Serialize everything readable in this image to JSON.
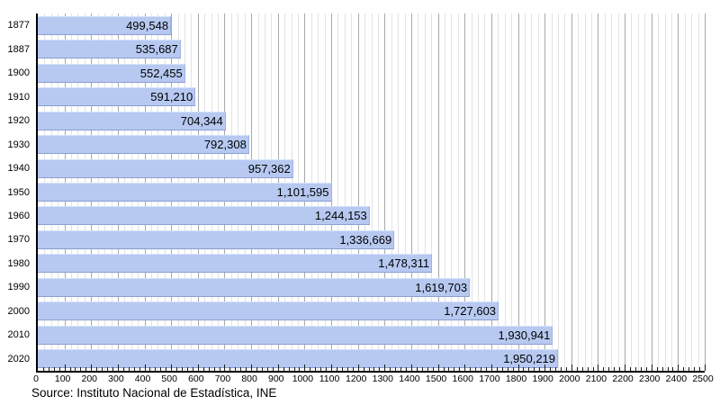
{
  "chart_data": {
    "type": "bar",
    "orientation": "horizontal",
    "title": "",
    "xlabel": "",
    "ylabel": "",
    "categories": [
      "1877",
      "1887",
      "1900",
      "1910",
      "1920",
      "1930",
      "1940",
      "1950",
      "1960",
      "1970",
      "1980",
      "1990",
      "2000",
      "2010",
      "2020"
    ],
    "values": [
      499548,
      535687,
      552455,
      591210,
      704344,
      792308,
      957362,
      1101595,
      1244153,
      1336669,
      1478311,
      1619703,
      1727603,
      1930941,
      1950219
    ],
    "value_labels": [
      "499,548",
      "535,687",
      "552,455",
      "591,210",
      "704,344",
      "792,308",
      "957,362",
      "1,101,595",
      "1,244,153",
      "1,336,669",
      "1,478,311",
      "1,619,703",
      "1,727,603",
      "1,930,941",
      "1,950,219"
    ],
    "x_axis": {
      "min": 0,
      "max": 2500,
      "unit_scale": "thousands",
      "major_tick_step": 100,
      "minor_tick_step": 20,
      "tick_labels": [
        "0",
        "100",
        "200",
        "300",
        "400",
        "500",
        "600",
        "700",
        "800",
        "900",
        "1000",
        "1100",
        "1200",
        "1300",
        "1400",
        "1500",
        "1600",
        "1700",
        "1800",
        "1900",
        "2000",
        "2100",
        "2200",
        "2300",
        "2400",
        "2500"
      ]
    },
    "grid": {
      "minor_step": 25,
      "major_step": 100,
      "grid_on": true
    },
    "legend": "none",
    "source": "Source: Instituto Nacional de Estadística, INE",
    "colors": {
      "bar_fill": "#b7c9f1",
      "bar_edge_dark": "#8b9fd0",
      "bar_edge_light": "#d3e2fa",
      "grid_major": "#a9a9a9",
      "grid_minor": "#e3e3e3",
      "axis": "#000000",
      "text": "#000000",
      "background": "#ffffff"
    }
  }
}
